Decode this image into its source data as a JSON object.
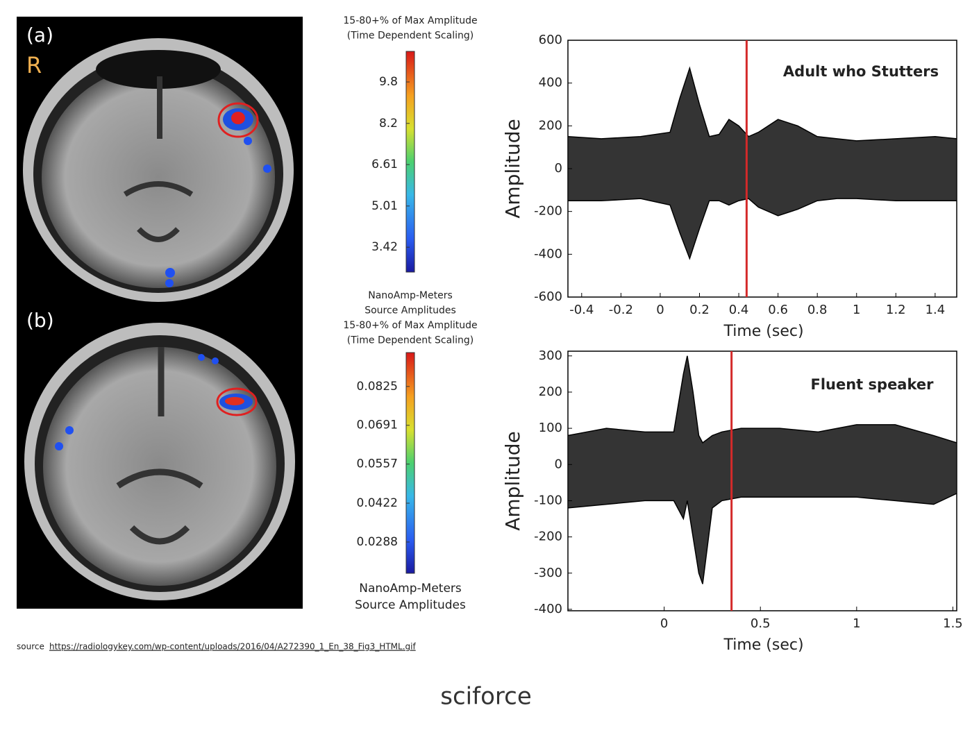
{
  "figure": {
    "panel_labels": {
      "a": "(a)",
      "r": "R",
      "b": "(b)"
    },
    "colorbars": [
      {
        "title_lines": [
          "15-80+% of Max Amplitude",
          "(Time Dependent Scaling)"
        ],
        "lim": [
          2.46,
          10.98
        ],
        "ticks": [
          9.8,
          8.2,
          6.61,
          5.01,
          3.42
        ]
      },
      {
        "title_lines": [
          "NanoAmp-Meters",
          "Source Amplitudes",
          "15-80+% of Max Amplitude",
          "(Time Dependent Scaling)"
        ],
        "lim": [
          0.018,
          0.0942
        ],
        "ticks": [
          0.0825,
          0.0691,
          0.0557,
          0.0422,
          0.0288
        ],
        "unit_lines": [
          "NanoAmp-Meters",
          "Source Amplitudes"
        ]
      }
    ],
    "source": {
      "prefix": "source",
      "url": "https://radiologykey.com/wp-content/uploads/2016/04/A272390_1_En_38_Fig3_HTML.gif"
    },
    "logo": "sciforce"
  },
  "chart_data": [
    {
      "type": "line",
      "title": "Adult who Stutters",
      "xlabel": "Time (sec)",
      "ylabel": "Amplitude",
      "xlim": [
        -0.47,
        1.51
      ],
      "ylim": [
        -600,
        600
      ],
      "xticks": [
        -0.4,
        -0.2,
        0,
        0.2,
        0.4,
        0.6,
        0.8,
        1,
        1.2,
        1.4
      ],
      "yticks": [
        600,
        400,
        200,
        0,
        -200,
        -400,
        -600
      ],
      "x": [
        -0.47,
        -0.3,
        -0.1,
        0.05,
        0.1,
        0.15,
        0.2,
        0.25,
        0.3,
        0.35,
        0.4,
        0.45,
        0.5,
        0.6,
        0.7,
        0.8,
        0.9,
        1.0,
        1.2,
        1.4,
        1.51
      ],
      "series": [
        {
          "color": "#000000",
          "values": [
            150,
            140,
            150,
            170,
            330,
            470,
            300,
            150,
            160,
            230,
            200,
            150,
            170,
            230,
            200,
            150,
            140,
            130,
            140,
            150,
            140
          ]
        },
        {
          "color": "#000000",
          "values": [
            -150,
            -150,
            -140,
            -170,
            -300,
            -420,
            -280,
            -150,
            -150,
            -170,
            -150,
            -140,
            -180,
            -220,
            -190,
            -150,
            -140,
            -140,
            -150,
            -150,
            -150
          ]
        }
      ],
      "vline": 0.44,
      "vline_color": "#d42a2a"
    },
    {
      "type": "line",
      "title": "Fluent speaker",
      "xlabel": "Time (sec)",
      "ylabel": "Amplitude",
      "xlim": [
        -0.5,
        1.52
      ],
      "ylim": [
        -404,
        313
      ],
      "xticks": [
        0,
        0.5,
        1,
        1.5
      ],
      "yticks": [
        300,
        200,
        100,
        0,
        -100,
        -200,
        -300,
        -400
      ],
      "x": [
        -0.5,
        -0.3,
        -0.1,
        0.05,
        0.1,
        0.12,
        0.15,
        0.18,
        0.2,
        0.25,
        0.3,
        0.4,
        0.6,
        0.8,
        1.0,
        1.2,
        1.4,
        1.52
      ],
      "series": [
        {
          "color": "#000000",
          "values": [
            80,
            100,
            90,
            90,
            250,
            300,
            200,
            80,
            60,
            80,
            90,
            100,
            100,
            90,
            110,
            110,
            80,
            60
          ]
        },
        {
          "color": "#000000",
          "values": [
            -120,
            -110,
            -100,
            -100,
            -150,
            -100,
            -200,
            -300,
            -330,
            -120,
            -100,
            -90,
            -90,
            -90,
            -90,
            -100,
            -110,
            -80
          ]
        }
      ],
      "vline": 0.35,
      "vline_color": "#d42a2a"
    }
  ]
}
